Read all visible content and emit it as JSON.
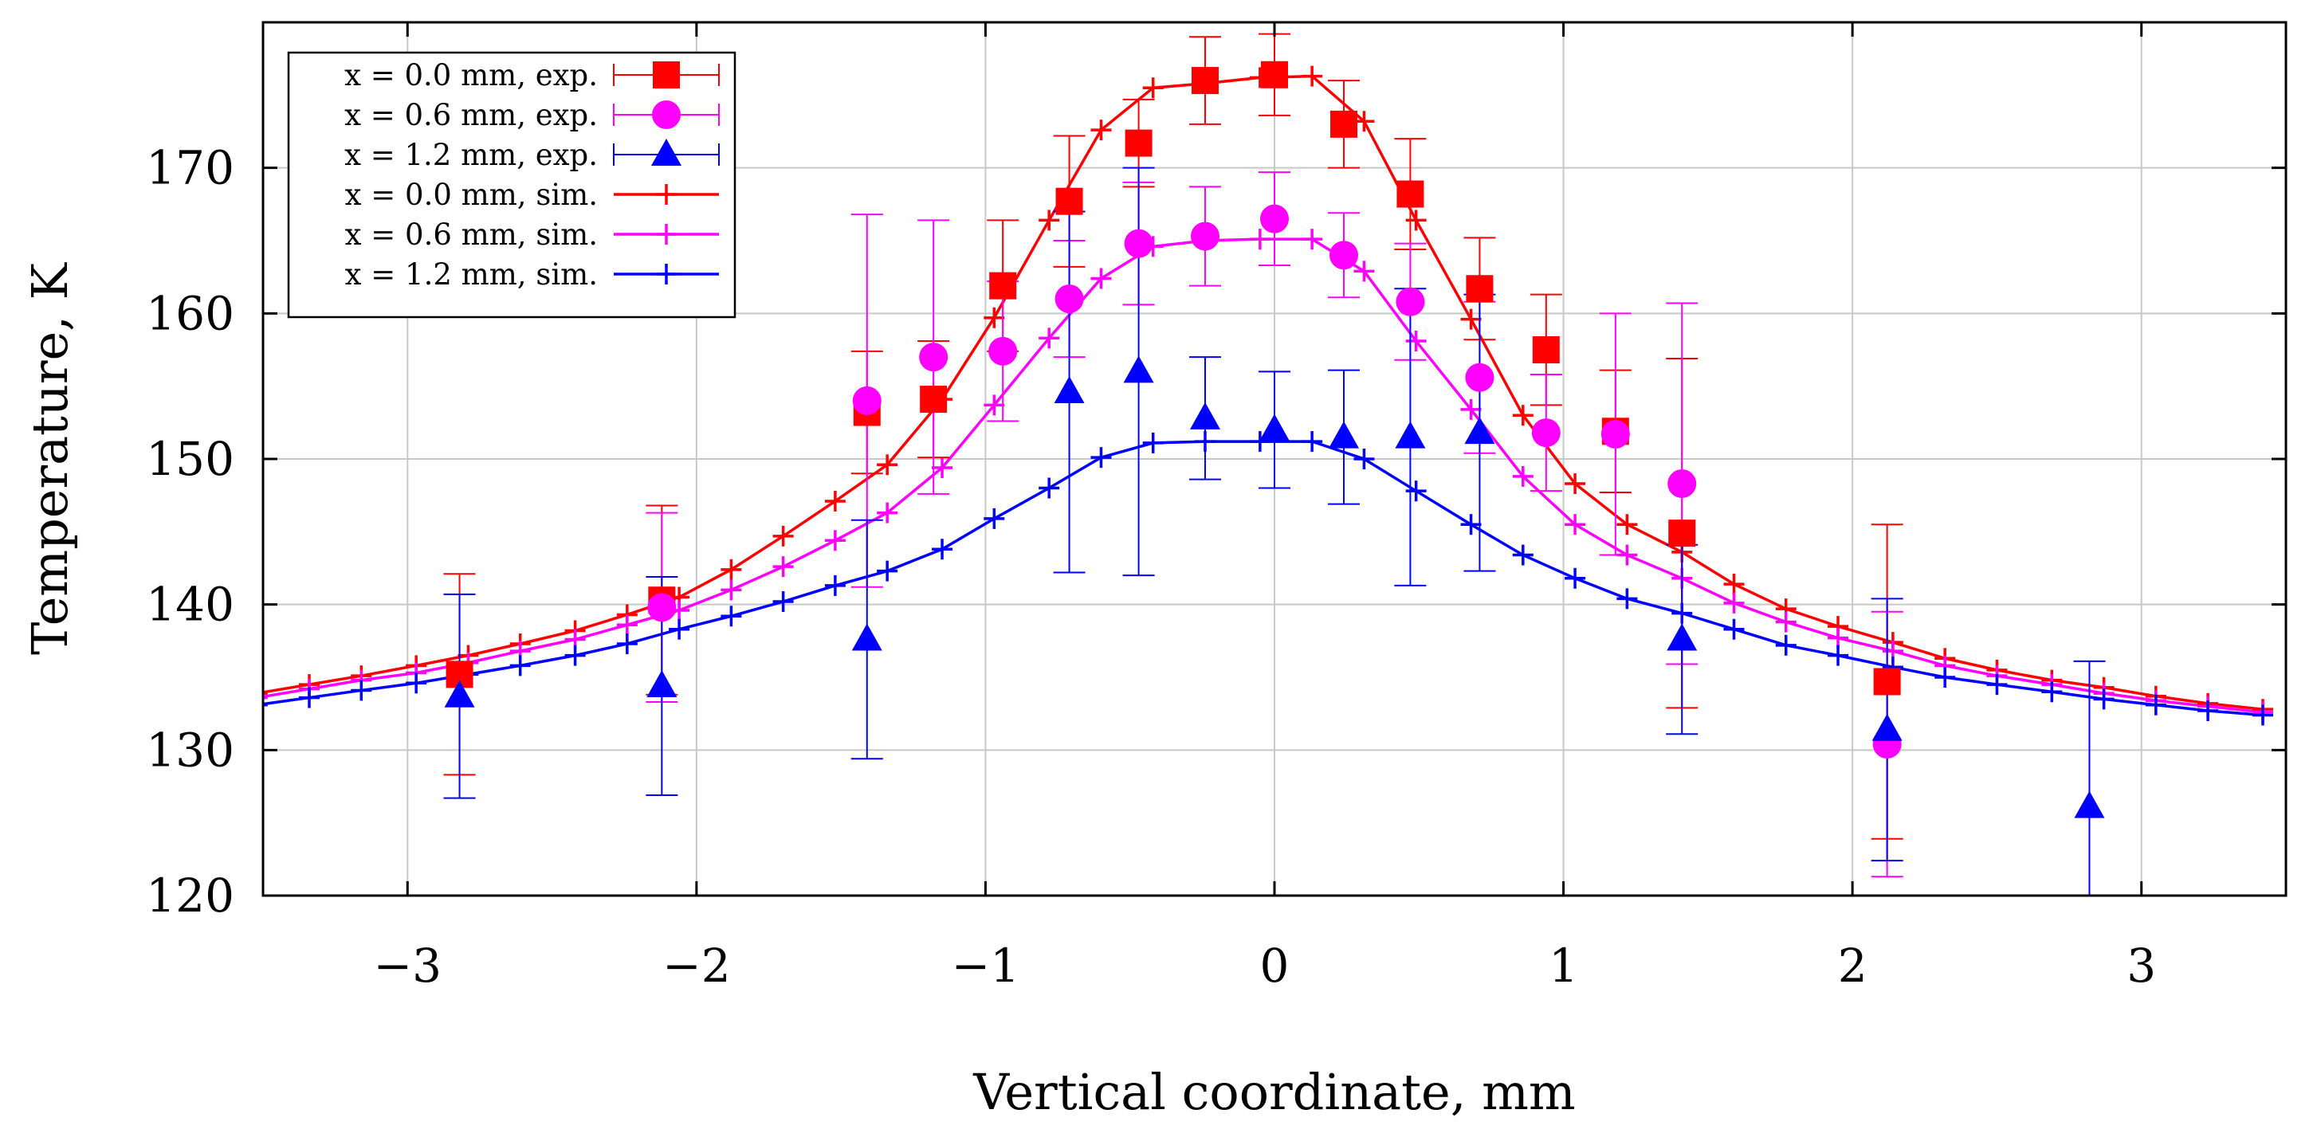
{
  "chart_data": {
    "type": "scatter",
    "xlabel": "Vertical coordinate, mm",
    "ylabel": "Temperature, K",
    "xlim": [
      -3.5,
      3.5
    ],
    "ylim": [
      120,
      180
    ],
    "x_ticks": [
      -3,
      -2,
      -1,
      0,
      1,
      2,
      3
    ],
    "x_tick_labels": [
      "−3",
      "−2",
      "−1",
      "0",
      "1",
      "2",
      "3"
    ],
    "y_ticks": [
      120,
      130,
      140,
      150,
      160,
      170
    ],
    "y_tick_labels": [
      "120",
      "130",
      "140",
      "150",
      "160",
      "170"
    ],
    "grid": true,
    "legend_position": "top-left",
    "colors": {
      "red": "#ff0000",
      "magenta": "#ff00ff",
      "blue": "#0000ff"
    },
    "experimental": [
      {
        "name": "x = 0.0 mm, exp.",
        "color": "#ff0000",
        "marker": "square",
        "x": [
          -2.82,
          -2.12,
          -1.41,
          -1.18,
          -0.94,
          -0.71,
          -0.47,
          -0.24,
          0.0,
          0.24,
          0.47,
          0.71,
          0.94,
          1.18,
          1.41,
          2.12
        ],
        "y": [
          135.2,
          140.3,
          153.2,
          154.1,
          161.9,
          167.7,
          171.7,
          176.0,
          176.4,
          173.0,
          168.2,
          161.7,
          157.5,
          151.9,
          144.9,
          134.7
        ],
        "err": [
          6.9,
          6.5,
          4.2,
          4.0,
          4.5,
          4.5,
          3.0,
          3.0,
          2.8,
          3.0,
          3.8,
          3.5,
          3.8,
          4.2,
          12.0,
          10.8
        ]
      },
      {
        "name": "x = 0.6 mm, exp.",
        "color": "#ff00ff",
        "marker": "circle",
        "x": [
          -2.12,
          -1.41,
          -1.18,
          -0.94,
          -0.71,
          -0.47,
          -0.24,
          0.0,
          0.24,
          0.47,
          0.71,
          0.94,
          1.18,
          1.41,
          2.12
        ],
        "y": [
          139.8,
          154.0,
          157.0,
          157.4,
          161.0,
          164.8,
          165.3,
          166.5,
          164.0,
          160.8,
          155.6,
          151.8,
          151.7,
          148.3,
          130.4
        ],
        "err": [
          6.5,
          12.8,
          9.4,
          4.8,
          4.0,
          4.2,
          3.4,
          3.2,
          2.9,
          4.0,
          5.2,
          4.0,
          8.3,
          12.4,
          9.1
        ]
      },
      {
        "name": "x = 1.2 mm, exp.",
        "color": "#0000ff",
        "marker": "triangle",
        "x": [
          -2.82,
          -2.12,
          -1.41,
          -0.71,
          -0.47,
          -0.24,
          0.0,
          0.24,
          0.47,
          0.71,
          1.41,
          2.12,
          2.82
        ],
        "y": [
          133.7,
          134.4,
          137.6,
          154.6,
          156.0,
          152.8,
          152.0,
          151.5,
          151.5,
          151.8,
          137.6,
          131.4,
          126.1
        ],
        "err": [
          7.0,
          7.5,
          8.2,
          12.4,
          14.0,
          4.2,
          4.0,
          4.6,
          10.2,
          9.5,
          6.5,
          9.0,
          10.0
        ]
      }
    ],
    "simulated": [
      {
        "name": "x = 0.0 mm, sim.",
        "color": "#ff0000",
        "marker": "plus",
        "x": [
          -3.52,
          -3.34,
          -3.16,
          -2.97,
          -2.79,
          -2.61,
          -2.42,
          -2.24,
          -2.06,
          -1.88,
          -1.7,
          -1.52,
          -1.34,
          -1.15,
          -0.97,
          -0.78,
          -0.6,
          -0.42,
          -0.24,
          -0.05,
          0.13,
          0.31,
          0.49,
          0.68,
          0.86,
          1.04,
          1.22,
          1.41,
          1.59,
          1.77,
          1.95,
          2.14,
          2.32,
          2.5,
          2.69,
          2.87,
          3.05,
          3.23,
          3.42
        ],
        "y": [
          133.9,
          134.5,
          135.1,
          135.8,
          136.5,
          137.3,
          138.2,
          139.3,
          140.5,
          142.4,
          144.7,
          147.1,
          149.6,
          154.1,
          159.7,
          166.4,
          172.6,
          175.5,
          175.8,
          176.2,
          176.3,
          173.2,
          166.4,
          159.6,
          153.0,
          148.3,
          145.5,
          143.6,
          141.4,
          139.7,
          138.5,
          137.4,
          136.3,
          135.5,
          134.8,
          134.3,
          133.7,
          133.2,
          132.8
        ]
      },
      {
        "name": "x = 0.6 mm, sim.",
        "color": "#ff00ff",
        "marker": "plus",
        "x": [
          -3.52,
          -3.34,
          -3.16,
          -2.97,
          -2.79,
          -2.61,
          -2.42,
          -2.24,
          -2.06,
          -1.88,
          -1.7,
          -1.52,
          -1.34,
          -1.15,
          -0.97,
          -0.78,
          -0.6,
          -0.42,
          -0.24,
          -0.05,
          0.13,
          0.31,
          0.49,
          0.68,
          0.86,
          1.04,
          1.22,
          1.41,
          1.59,
          1.77,
          1.95,
          2.14,
          2.32,
          2.5,
          2.69,
          2.87,
          3.05,
          3.23,
          3.42
        ],
        "y": [
          133.6,
          134.2,
          134.8,
          135.3,
          136.0,
          136.8,
          137.6,
          138.6,
          139.6,
          141.0,
          142.6,
          144.4,
          146.3,
          149.4,
          153.7,
          158.3,
          162.4,
          164.6,
          165.0,
          165.1,
          165.1,
          162.9,
          158.1,
          153.4,
          148.8,
          145.5,
          143.4,
          141.8,
          140.1,
          138.8,
          137.7,
          136.8,
          135.8,
          135.1,
          134.5,
          133.9,
          133.4,
          133.0,
          132.6
        ]
      },
      {
        "name": "x = 1.2 mm, sim.",
        "color": "#0000ff",
        "marker": "plus",
        "x": [
          -3.52,
          -3.34,
          -3.16,
          -2.97,
          -2.79,
          -2.61,
          -2.42,
          -2.24,
          -2.06,
          -1.88,
          -1.7,
          -1.52,
          -1.34,
          -1.15,
          -0.97,
          -0.78,
          -0.6,
          -0.42,
          -0.24,
          -0.05,
          0.13,
          0.31,
          0.49,
          0.68,
          0.86,
          1.04,
          1.22,
          1.41,
          1.59,
          1.77,
          1.95,
          2.14,
          2.32,
          2.5,
          2.69,
          2.87,
          3.05,
          3.23,
          3.42
        ],
        "y": [
          133.1,
          133.6,
          134.1,
          134.6,
          135.2,
          135.8,
          136.5,
          137.3,
          138.3,
          139.2,
          140.2,
          141.3,
          142.3,
          143.8,
          145.9,
          148.0,
          150.1,
          151.1,
          151.2,
          151.2,
          151.2,
          150.0,
          147.8,
          145.5,
          143.4,
          141.8,
          140.4,
          139.4,
          138.3,
          137.2,
          136.5,
          135.7,
          135.0,
          134.5,
          134.0,
          133.5,
          133.1,
          132.7,
          132.4
        ]
      }
    ]
  }
}
